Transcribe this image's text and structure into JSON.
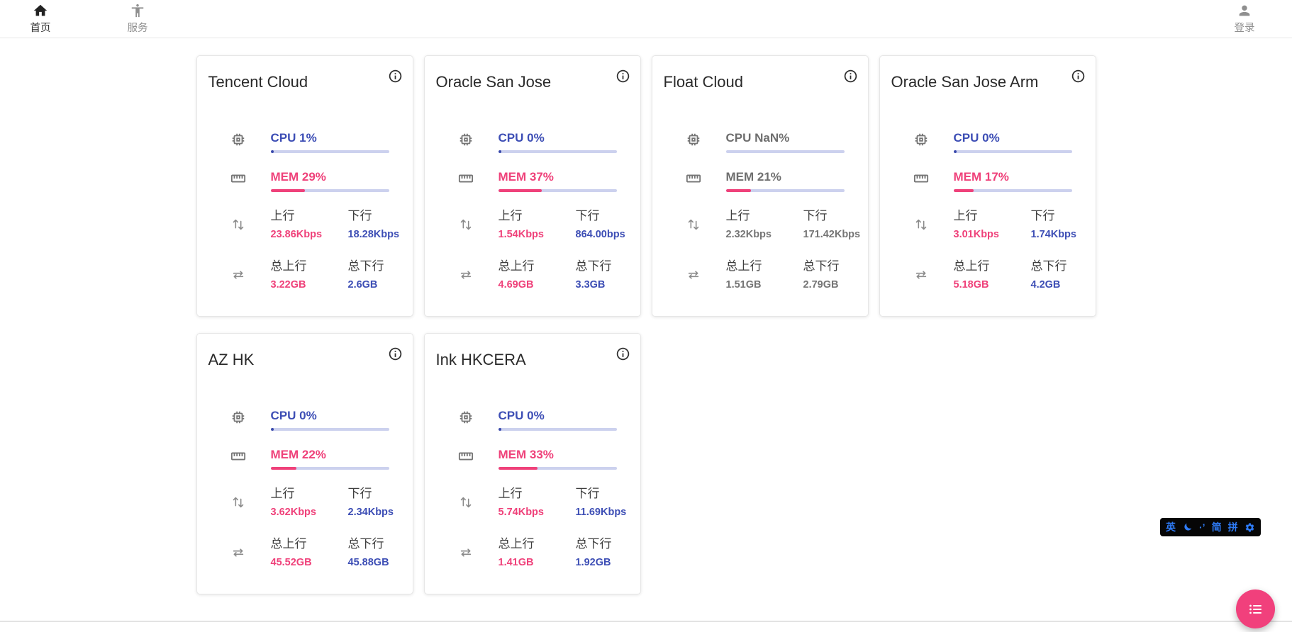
{
  "nav": {
    "home_label": "首页",
    "services_label": "服务",
    "login_label": "登录"
  },
  "labels": {
    "up": "上行",
    "down": "下行",
    "total_up": "总上行",
    "total_down": "总下行"
  },
  "colors": {
    "accent_pink": "#ef417a",
    "accent_indigo": "#3d4eb5",
    "progress_track": "#ccd1ee",
    "fab_pink": "#f1407c",
    "stale_gray": "#757575"
  },
  "servers": [
    {
      "name": "Tencent Cloud",
      "cpu_label": "CPU 1%",
      "cpu_pct": 1,
      "mem_label": "MEM 29%",
      "mem_pct": 29,
      "up": "23.86Kbps",
      "down": "18.28Kbps",
      "total_up": "3.22GB",
      "total_down": "2.6GB",
      "stale": false
    },
    {
      "name": "Oracle San Jose",
      "cpu_label": "CPU 0%",
      "cpu_pct": 0,
      "mem_label": "MEM 37%",
      "mem_pct": 37,
      "up": "1.54Kbps",
      "down": "864.00bps",
      "total_up": "4.69GB",
      "total_down": "3.3GB",
      "stale": false
    },
    {
      "name": "Float Cloud",
      "cpu_label": "CPU NaN%",
      "cpu_pct": null,
      "mem_label": "MEM 21%",
      "mem_pct": 21,
      "up": "2.32Kbps",
      "down": "171.42Kbps",
      "total_up": "1.51GB",
      "total_down": "2.79GB",
      "stale": true
    },
    {
      "name": "Oracle San Jose Arm",
      "cpu_label": "CPU 0%",
      "cpu_pct": 0,
      "mem_label": "MEM 17%",
      "mem_pct": 17,
      "up": "3.01Kbps",
      "down": "1.74Kbps",
      "total_up": "5.18GB",
      "total_down": "4.2GB",
      "stale": false
    },
    {
      "name": "AZ HK",
      "cpu_label": "CPU 0%",
      "cpu_pct": 0,
      "mem_label": "MEM 22%",
      "mem_pct": 22,
      "up": "3.62Kbps",
      "down": "2.34Kbps",
      "total_up": "45.52GB",
      "total_down": "45.88GB",
      "stale": false
    },
    {
      "name": "Ink HKCERA",
      "cpu_label": "CPU 0%",
      "cpu_pct": 0,
      "mem_label": "MEM 33%",
      "mem_pct": 33,
      "up": "5.74Kbps",
      "down": "11.69Kbps",
      "total_up": "1.41GB",
      "total_down": "1.92GB",
      "stale": false
    }
  ],
  "ime": {
    "english": "英",
    "punct": "·’",
    "simplified": "简",
    "pinyin": "拼"
  }
}
